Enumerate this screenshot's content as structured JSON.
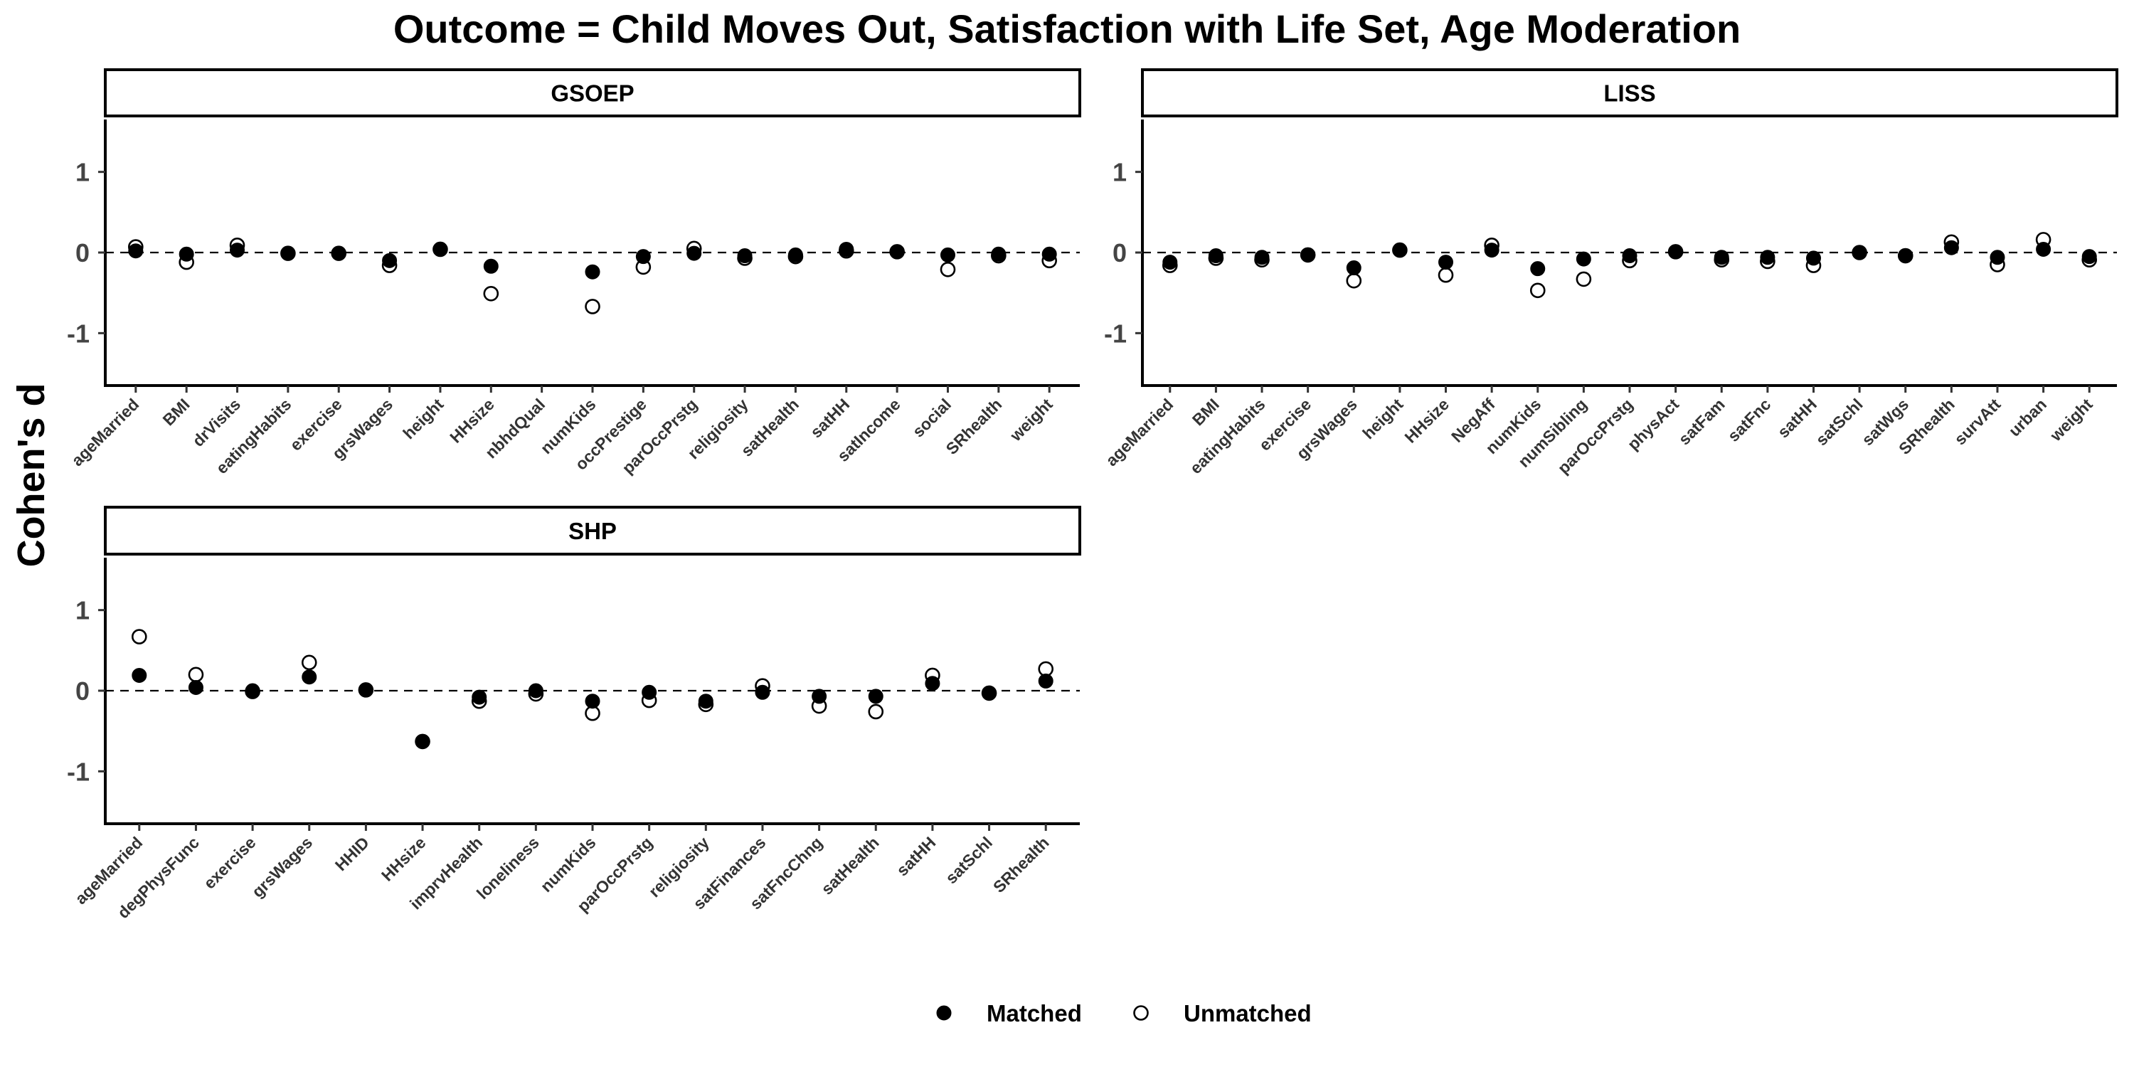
{
  "chart_data": {
    "type": "scatter",
    "title": "Outcome = Child Moves Out, Satisfaction with Life Set, Age Moderation",
    "ylabel": "Cohen's d",
    "ylim": [
      -1.65,
      1.65
    ],
    "yticks": [
      -1,
      0,
      1
    ],
    "reference_line": {
      "y": 0,
      "style": "dashed"
    },
    "grid": false,
    "legend": {
      "position": "bottom",
      "entries": [
        {
          "label": "Matched",
          "marker": "filled-circle"
        },
        {
          "label": "Unmatched",
          "marker": "open-circle"
        }
      ]
    },
    "panels": [
      {
        "name": "GSOEP",
        "categories": [
          "ageMarried",
          "BMI",
          "drVisits",
          "eatingHabits",
          "exercise",
          "grsWages",
          "height",
          "HHsize",
          "nbhdQual",
          "numKids",
          "occPrestige",
          "parOccPrstg",
          "religiosity",
          "satHealth",
          "satHH",
          "satIncome",
          "social",
          "SRhealth",
          "weight"
        ],
        "series": [
          {
            "name": "Matched",
            "values": [
              0.02,
              -0.02,
              0.03,
              -0.01,
              -0.01,
              -0.1,
              0.04,
              -0.17,
              null,
              -0.24,
              -0.05,
              -0.01,
              -0.04,
              -0.03,
              0.04,
              0.01,
              -0.03,
              -0.02,
              -0.02
            ]
          },
          {
            "name": "Unmatched",
            "values": [
              0.07,
              -0.12,
              0.09,
              -0.01,
              -0.01,
              -0.16,
              0.04,
              -0.51,
              null,
              -0.67,
              -0.18,
              0.05,
              -0.07,
              -0.05,
              0.02,
              0.01,
              -0.21,
              -0.04,
              -0.1
            ]
          }
        ]
      },
      {
        "name": "LISS",
        "categories": [
          "ageMarried",
          "BMI",
          "eatingHabits",
          "exercise",
          "grsWages",
          "height",
          "HHsize",
          "NegAff",
          "numKids",
          "numSibling",
          "parOccPrstg",
          "physAct",
          "satFam",
          "satFnc",
          "satHH",
          "satSchl",
          "satWgs",
          "SRhealth",
          "survAtt",
          "urban",
          "weight"
        ],
        "series": [
          {
            "name": "Matched",
            "values": [
              -0.12,
              -0.04,
              -0.06,
              -0.03,
              -0.19,
              0.03,
              -0.12,
              0.03,
              -0.2,
              -0.08,
              -0.04,
              0.01,
              -0.06,
              -0.06,
              -0.07,
              0.0,
              -0.04,
              0.06,
              -0.06,
              0.04,
              -0.05
            ]
          },
          {
            "name": "Unmatched",
            "values": [
              -0.16,
              -0.07,
              -0.09,
              -0.03,
              -0.35,
              0.03,
              -0.28,
              0.09,
              -0.47,
              -0.33,
              -0.1,
              0.01,
              -0.09,
              -0.11,
              -0.16,
              0.0,
              -0.04,
              0.13,
              -0.15,
              0.16,
              -0.09
            ]
          }
        ]
      },
      {
        "name": "SHP",
        "categories": [
          "ageMarried",
          "degPhysFunc",
          "exercise",
          "grsWages",
          "HHID",
          "HHsize",
          "imprvHealth",
          "loneliness",
          "numKids",
          "parOccPrstg",
          "religiosity",
          "satFinances",
          "satFncChng",
          "satHealth",
          "satHH",
          "satSchl",
          "SRhealth"
        ],
        "series": [
          {
            "name": "Matched",
            "values": [
              0.19,
              0.04,
              0.0,
              0.17,
              0.01,
              -0.63,
              -0.08,
              0.0,
              -0.13,
              -0.02,
              -0.13,
              -0.02,
              -0.07,
              -0.07,
              0.09,
              -0.03,
              0.12
            ]
          },
          {
            "name": "Unmatched",
            "values": [
              0.67,
              0.2,
              -0.01,
              0.35,
              0.01,
              -0.63,
              -0.13,
              -0.04,
              -0.28,
              -0.12,
              -0.17,
              0.06,
              -0.19,
              -0.26,
              0.19,
              -0.03,
              0.27
            ]
          }
        ]
      }
    ]
  }
}
